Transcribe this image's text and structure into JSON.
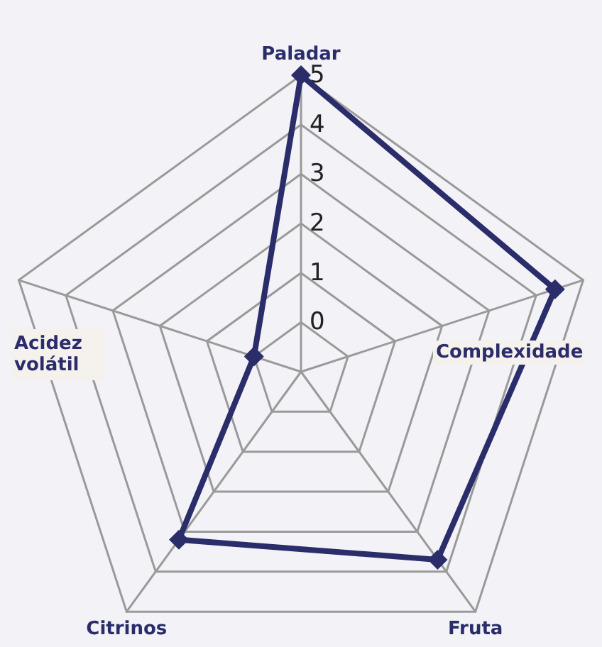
{
  "chart_data": {
    "type": "radar",
    "categories": [
      "Paladar",
      "Complexidade",
      "Fruta",
      "Citrinos",
      "Acidez volátil"
    ],
    "series": [
      {
        "color": "#2b2d6b",
        "values": [
          5,
          4.4,
          3.7,
          3.2,
          0
        ]
      }
    ],
    "ylim": [
      -1,
      5
    ],
    "yticks": [
      0,
      1,
      2,
      3,
      4,
      5
    ],
    "marker": "diamond",
    "grid": true
  }
}
